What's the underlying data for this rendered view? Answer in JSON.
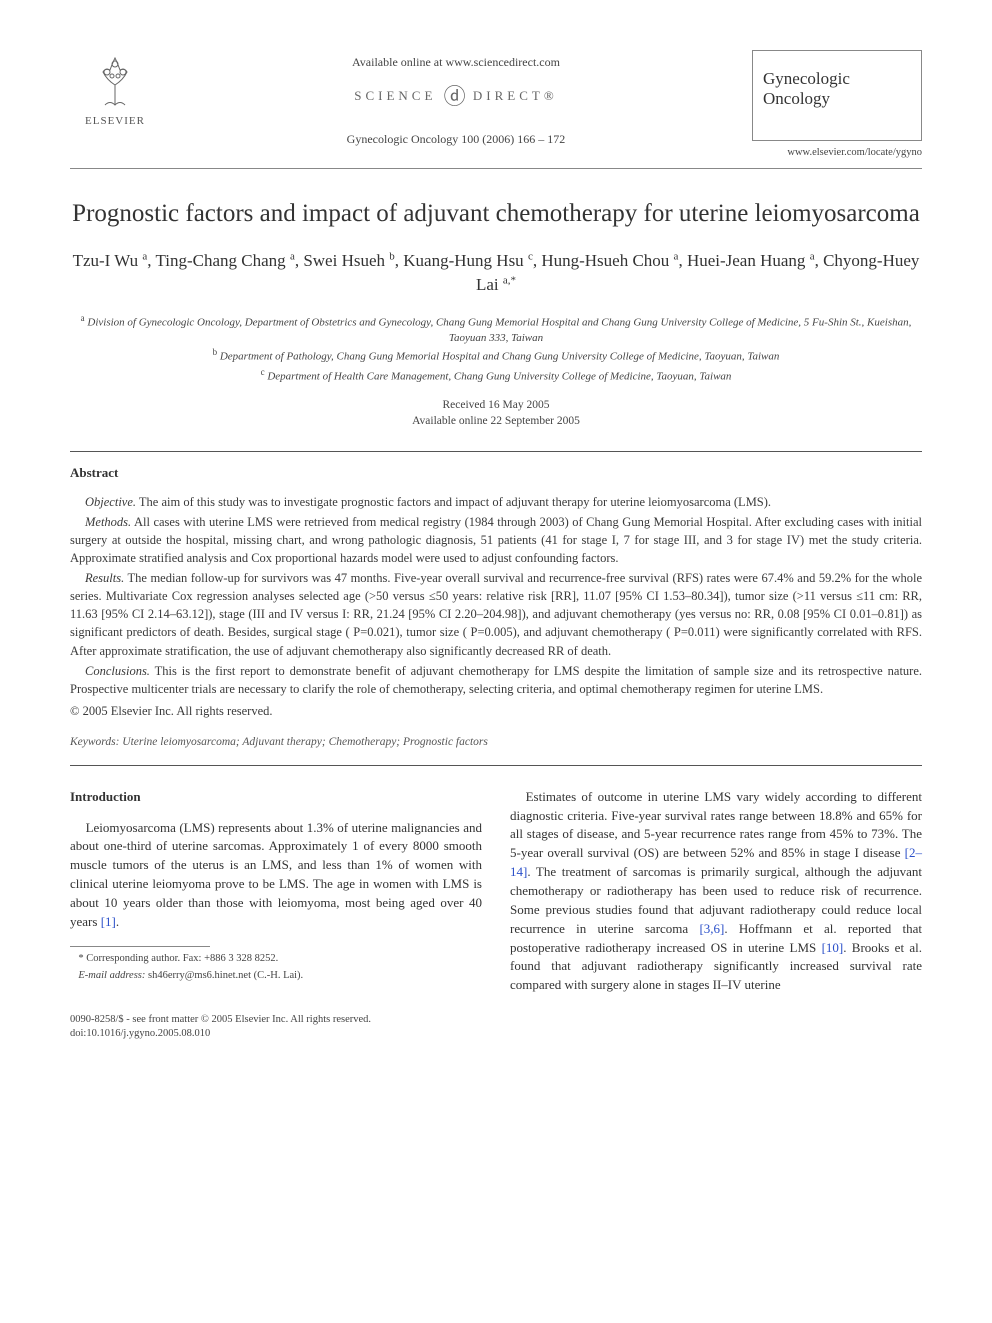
{
  "header": {
    "publisher": "ELSEVIER",
    "available_line": "Available online at www.sciencedirect.com",
    "sd_left": "SCIENCE",
    "sd_right": "DIRECT®",
    "citation": "Gynecologic Oncology 100 (2006) 166 – 172",
    "journal_name_1": "Gynecologic",
    "journal_name_2": "Oncology",
    "journal_url": "www.elsevier.com/locate/ygyno"
  },
  "title": "Prognostic factors and impact of adjuvant chemotherapy for uterine leiomyosarcoma",
  "authors_html": "Tzu-I Wu <sup>a</sup>, Ting-Chang Chang <sup>a</sup>, Swei Hsueh <sup>b</sup>, Kuang-Hung Hsu <sup>c</sup>, Hung-Hsueh Chou <sup>a</sup>, Huei-Jean Huang <sup>a</sup>, Chyong-Huey Lai <sup>a,*</sup>",
  "affiliations": {
    "a": "Division of Gynecologic Oncology, Department of Obstetrics and Gynecology, Chang Gung Memorial Hospital and Chang Gung University College of Medicine, 5 Fu-Shin St., Kueishan, Taoyuan 333, Taiwan",
    "b": "Department of Pathology, Chang Gung Memorial Hospital and Chang Gung University College of Medicine, Taoyuan, Taiwan",
    "c": "Department of Health Care Management, Chang Gung University College of Medicine, Taoyuan, Taiwan"
  },
  "dates": {
    "received": "Received 16 May 2005",
    "online": "Available online 22 September 2005"
  },
  "abstract": {
    "heading": "Abstract",
    "objective_label": "Objective.",
    "objective": "The aim of this study was to investigate prognostic factors and impact of adjuvant therapy for uterine leiomyosarcoma (LMS).",
    "methods_label": "Methods.",
    "methods": "All cases with uterine LMS were retrieved from medical registry (1984 through 2003) of Chang Gung Memorial Hospital. After excluding cases with initial surgery at outside the hospital, missing chart, and wrong pathologic diagnosis, 51 patients (41 for stage I, 7 for stage III, and 3 for stage IV) met the study criteria. Approximate stratified analysis and Cox proportional hazards model were used to adjust confounding factors.",
    "results_label": "Results.",
    "results": "The median follow-up for survivors was 47 months. Five-year overall survival and recurrence-free survival (RFS) rates were 67.4% and 59.2% for the whole series. Multivariate Cox regression analyses selected age (>50 versus ≤50 years: relative risk [RR], 11.07 [95% CI 1.53–80.34]), tumor size (>11 versus ≤11 cm: RR, 11.63 [95% CI 2.14–63.12]), stage (III and IV versus I: RR, 21.24 [95% CI 2.20–204.98]), and adjuvant chemotherapy (yes versus no: RR, 0.08 [95% CI 0.01–0.81]) as significant predictors of death. Besides, surgical stage ( P=0.021), tumor size ( P=0.005), and adjuvant chemotherapy ( P=0.011) were significantly correlated with RFS. After approximate stratification, the use of adjuvant chemotherapy also significantly decreased RR of death.",
    "conclusions_label": "Conclusions.",
    "conclusions": "This is the first report to demonstrate benefit of adjuvant chemotherapy for LMS despite the limitation of sample size and its retrospective nature. Prospective multicenter trials are necessary to clarify the role of chemotherapy, selecting criteria, and optimal chemotherapy regimen for uterine LMS.",
    "copyright": "© 2005 Elsevier Inc. All rights reserved."
  },
  "keywords": {
    "label": "Keywords:",
    "text": "Uterine leiomyosarcoma; Adjuvant therapy; Chemotherapy; Prognostic factors"
  },
  "intro": {
    "heading": "Introduction",
    "p1_a": "Leiomyosarcoma (LMS) represents about 1.3% of uterine malignancies and about one-third of uterine sarcomas. Approximately 1 of every 8000 smooth muscle tumors of the uterus is an LMS, and less than 1% of women with clinical uterine leiomyoma prove to be LMS. The age in women with LMS is about 10 years older than those with leiomyoma, most being aged over 40 years ",
    "p1_cite": "[1]",
    "p1_b": ".",
    "p2_a": "Estimates of outcome in uterine LMS vary widely according to different diagnostic criteria. Five-year survival rates range between 18.8% and 65% for all stages of disease, and 5-year recurrence rates range from 45% to 73%. The 5-year overall survival (OS) are between 52% and 85% in stage I disease ",
    "p2_cite1": "[2–14]",
    "p2_b": ". The treatment of sarcomas is primarily surgical, although the adjuvant chemotherapy or radiotherapy has been used to reduce risk of recurrence. Some previous studies found that adjuvant radiotherapy could reduce local recurrence in uterine sarcoma ",
    "p2_cite2": "[3,6]",
    "p2_c": ". Hoffmann et al. reported that postoperative radiotherapy increased OS in uterine LMS ",
    "p2_cite3": "[10]",
    "p2_d": ". Brooks et al. found that adjuvant radiotherapy significantly increased survival rate compared with surgery alone in stages II–IV uterine"
  },
  "footnotes": {
    "corr": "* Corresponding author. Fax: +886 3 328 8252.",
    "email_label": "E-mail address:",
    "email": "sh46erry@ms6.hinet.net (C.-H. Lai)."
  },
  "footer": {
    "line1": "0090-8258/$ - see front matter © 2005 Elsevier Inc. All rights reserved.",
    "line2": "doi:10.1016/j.ygyno.2005.08.010"
  }
}
